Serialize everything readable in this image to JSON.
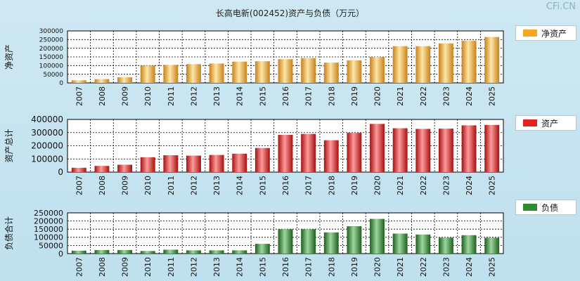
{
  "title": "长高电新(002452)资产与负债（万元）",
  "watermark": "CFi.CN",
  "colors": {
    "net_assets": "#f5a623",
    "assets": "#e52222",
    "liabilities": "#2e8b2e"
  },
  "chart_data": [
    {
      "type": "bar",
      "ylabel": "净资产",
      "legend": "净资产",
      "legend_position": "right",
      "grid": true,
      "categories": [
        "2007",
        "2008",
        "2009",
        "2010",
        "2011",
        "2012",
        "2013",
        "2014",
        "2015",
        "2016",
        "2017",
        "2018",
        "2019",
        "2020",
        "2021",
        "2022",
        "2023",
        "2024",
        "2025"
      ],
      "values": [
        15000,
        22000,
        32000,
        100000,
        104000,
        108000,
        112000,
        123000,
        125000,
        137000,
        143000,
        117000,
        130000,
        150000,
        212000,
        212000,
        228000,
        243000,
        265000
      ],
      "ylim": [
        0,
        300000
      ],
      "yticks": [
        "0",
        "50000",
        "100000",
        "150000",
        "200000",
        "250000",
        "300000"
      ]
    },
    {
      "type": "bar",
      "ylabel": "资产总计",
      "legend": "资产",
      "legend_position": "right",
      "grid": true,
      "categories": [
        "2007",
        "2008",
        "2009",
        "2010",
        "2011",
        "2012",
        "2013",
        "2014",
        "2015",
        "2016",
        "2017",
        "2018",
        "2019",
        "2020",
        "2021",
        "2022",
        "2023",
        "2024",
        "2025"
      ],
      "values": [
        33000,
        47000,
        56000,
        113000,
        128000,
        125000,
        130000,
        140000,
        183000,
        283000,
        290000,
        242000,
        298000,
        366000,
        333000,
        328000,
        330000,
        355000,
        358000
      ],
      "ylim": [
        0,
        400000
      ],
      "yticks": [
        "0",
        "100000",
        "200000",
        "300000",
        "400000"
      ]
    },
    {
      "type": "bar",
      "ylabel": "负债合计",
      "legend": "负债",
      "legend_position": "right",
      "grid": true,
      "categories": [
        "2007",
        "2008",
        "2009",
        "2010",
        "2011",
        "2012",
        "2013",
        "2014",
        "2015",
        "2016",
        "2017",
        "2018",
        "2019",
        "2020",
        "2021",
        "2022",
        "2023",
        "2024",
        "2025"
      ],
      "values": [
        18000,
        22000,
        22000,
        16000,
        24000,
        20000,
        20000,
        20000,
        60000,
        150000,
        150000,
        130000,
        168000,
        213000,
        123000,
        117000,
        98000,
        113000,
        97000
      ],
      "ylim": [
        0,
        250000
      ],
      "yticks": [
        "0",
        "50000",
        "100000",
        "150000",
        "200000",
        "250000"
      ]
    }
  ]
}
